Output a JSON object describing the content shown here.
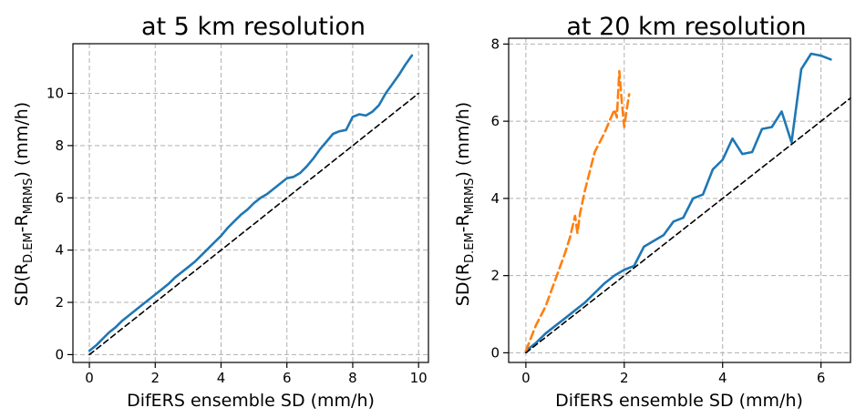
{
  "chart_data": [
    {
      "type": "line",
      "title": "at 5 km resolution",
      "xlabel": "DifERS ensemble SD (mm/h)",
      "ylabel_main": "SD(R",
      "ylabel_sub1": "D.EM",
      "ylabel_mid": "-R",
      "ylabel_sub2": "MRMS",
      "ylabel_end": ") (mm/h)",
      "xlim": [
        -0.5,
        10.3
      ],
      "ylim": [
        -0.3,
        11.9
      ],
      "xticks": [
        0,
        2,
        4,
        6,
        8,
        10
      ],
      "yticks": [
        0,
        2,
        4,
        6,
        8,
        10
      ],
      "grid": true,
      "series": [
        {
          "color": "#1f77b4",
          "style": "solid",
          "points": [
            [
              0,
              0.15
            ],
            [
              0.2,
              0.35
            ],
            [
              0.4,
              0.6
            ],
            [
              0.6,
              0.85
            ],
            [
              0.8,
              1.05
            ],
            [
              1.0,
              1.3
            ],
            [
              1.2,
              1.5
            ],
            [
              1.4,
              1.7
            ],
            [
              1.6,
              1.9
            ],
            [
              1.8,
              2.1
            ],
            [
              2.0,
              2.3
            ],
            [
              2.2,
              2.5
            ],
            [
              2.4,
              2.7
            ],
            [
              2.6,
              2.95
            ],
            [
              2.8,
              3.15
            ],
            [
              3.0,
              3.35
            ],
            [
              3.2,
              3.55
            ],
            [
              3.4,
              3.8
            ],
            [
              3.6,
              4.05
            ],
            [
              3.8,
              4.3
            ],
            [
              4.0,
              4.55
            ],
            [
              4.2,
              4.85
            ],
            [
              4.4,
              5.1
            ],
            [
              4.6,
              5.35
            ],
            [
              4.8,
              5.55
            ],
            [
              5.0,
              5.8
            ],
            [
              5.2,
              6.0
            ],
            [
              5.4,
              6.15
            ],
            [
              5.6,
              6.35
            ],
            [
              5.8,
              6.55
            ],
            [
              6.0,
              6.75
            ],
            [
              6.2,
              6.8
            ],
            [
              6.4,
              6.95
            ],
            [
              6.6,
              7.2
            ],
            [
              6.8,
              7.5
            ],
            [
              7.0,
              7.85
            ],
            [
              7.2,
              8.15
            ],
            [
              7.4,
              8.45
            ],
            [
              7.6,
              8.55
            ],
            [
              7.8,
              8.6
            ],
            [
              8.0,
              9.1
            ],
            [
              8.2,
              9.2
            ],
            [
              8.4,
              9.15
            ],
            [
              8.6,
              9.3
            ],
            [
              8.8,
              9.55
            ],
            [
              9.0,
              10.0
            ],
            [
              9.2,
              10.35
            ],
            [
              9.4,
              10.7
            ],
            [
              9.6,
              11.1
            ],
            [
              9.8,
              11.45
            ]
          ]
        },
        {
          "color": "#000000",
          "style": "dashed",
          "points": [
            [
              0,
              0
            ],
            [
              10,
              10
            ]
          ]
        }
      ]
    },
    {
      "type": "line",
      "title": "at 20 km resolution",
      "xlabel": "DifERS ensemble SD (mm/h)",
      "ylabel_main": "SD(R",
      "ylabel_sub1": "D.EM",
      "ylabel_mid": "-R",
      "ylabel_sub2": "MRMS",
      "ylabel_end": ") (mm/h)",
      "xlim": [
        -0.35,
        6.6
      ],
      "ylim": [
        -0.25,
        8.15
      ],
      "xticks": [
        0,
        2,
        4,
        6
      ],
      "yticks": [
        0,
        2,
        4,
        6,
        8
      ],
      "grid": true,
      "series": [
        {
          "color": "#1f77b4",
          "style": "solid",
          "points": [
            [
              0,
              0.05
            ],
            [
              0.2,
              0.25
            ],
            [
              0.4,
              0.5
            ],
            [
              0.6,
              0.7
            ],
            [
              0.8,
              0.9
            ],
            [
              1.0,
              1.1
            ],
            [
              1.2,
              1.3
            ],
            [
              1.4,
              1.55
            ],
            [
              1.6,
              1.8
            ],
            [
              1.8,
              2.0
            ],
            [
              2.0,
              2.15
            ],
            [
              2.2,
              2.25
            ],
            [
              2.4,
              2.75
            ],
            [
              2.6,
              2.9
            ],
            [
              2.8,
              3.05
            ],
            [
              3.0,
              3.4
            ],
            [
              3.2,
              3.5
            ],
            [
              3.4,
              4.0
            ],
            [
              3.6,
              4.1
            ],
            [
              3.8,
              4.75
            ],
            [
              4.0,
              5.0
            ],
            [
              4.2,
              5.55
            ],
            [
              4.4,
              5.15
            ],
            [
              4.6,
              5.2
            ],
            [
              4.8,
              5.8
            ],
            [
              5.0,
              5.85
            ],
            [
              5.2,
              6.25
            ],
            [
              5.4,
              5.45
            ],
            [
              5.6,
              7.35
            ],
            [
              5.8,
              7.75
            ],
            [
              6.0,
              7.7
            ],
            [
              6.2,
              7.6
            ]
          ]
        },
        {
          "color": "#ff7f0e",
          "style": "dashed",
          "points": [
            [
              0,
              0.05
            ],
            [
              0.2,
              0.7
            ],
            [
              0.4,
              1.2
            ],
            [
              0.6,
              1.9
            ],
            [
              0.8,
              2.6
            ],
            [
              0.9,
              3.0
            ],
            [
              1.0,
              3.55
            ],
            [
              1.05,
              3.1
            ],
            [
              1.1,
              3.6
            ],
            [
              1.2,
              4.2
            ],
            [
              1.4,
              5.2
            ],
            [
              1.6,
              5.7
            ],
            [
              1.7,
              6.0
            ],
            [
              1.8,
              6.3
            ],
            [
              1.85,
              6.1
            ],
            [
              1.9,
              7.3
            ],
            [
              1.95,
              6.5
            ],
            [
              2.0,
              5.85
            ],
            [
              2.05,
              6.3
            ],
            [
              2.1,
              6.7
            ]
          ]
        },
        {
          "color": "#000000",
          "style": "dashed",
          "points": [
            [
              0,
              0
            ],
            [
              6.6,
              6.6
            ]
          ]
        }
      ]
    }
  ]
}
